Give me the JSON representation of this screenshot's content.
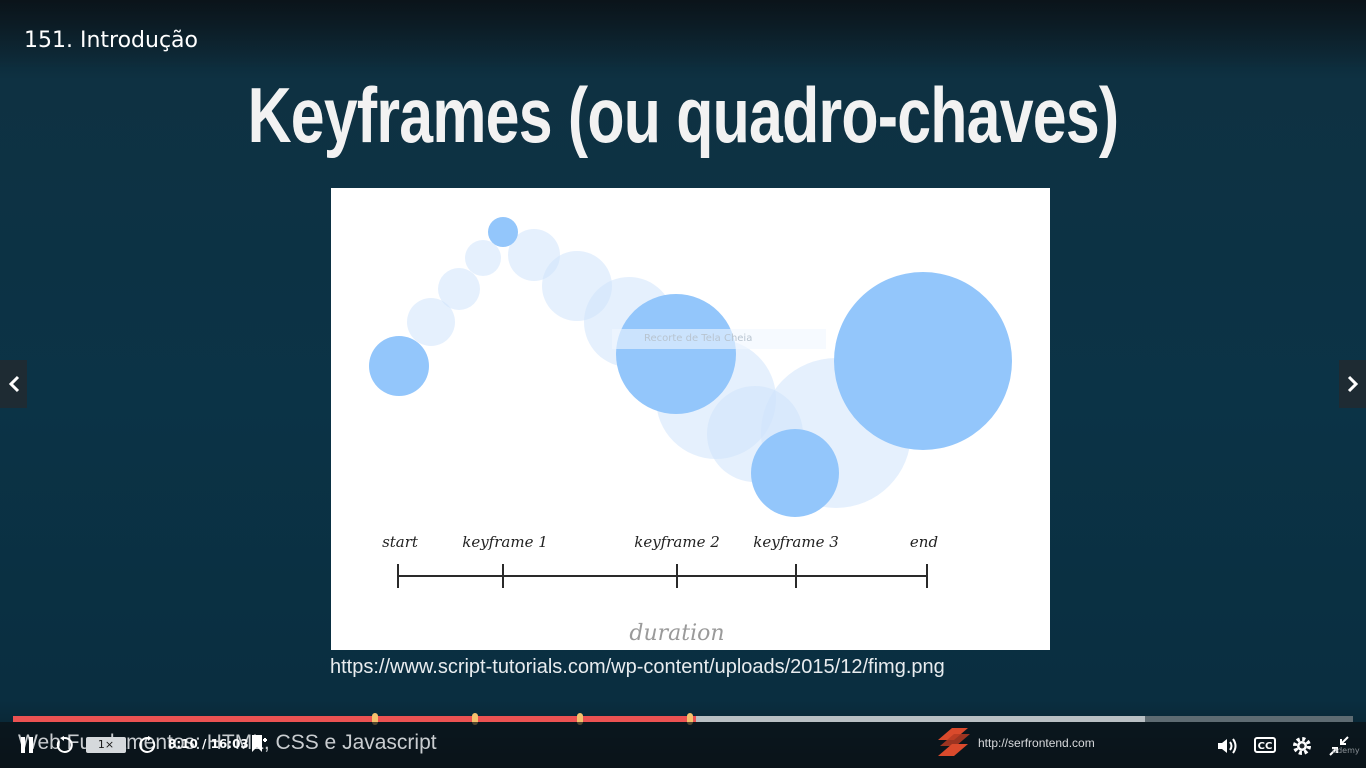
{
  "lecture": {
    "title": "151. Introdução"
  },
  "slide": {
    "heading": "Keyframes (ou quadro-chaves)",
    "source_url": "https://www.script-tutorials.com/wp-content/uploads/2015/12/fimg.png",
    "overlay_label": "Recorte de Tela Cheia",
    "figure_labels": {
      "start": "start",
      "keyframe1": "keyframe 1",
      "keyframe2": "keyframe 2",
      "keyframe3": "keyframe 3",
      "end": "end",
      "duration": "duration"
    }
  },
  "player": {
    "course_title": "Web Fundamentos: HTML, CSS e Javascript",
    "speed": "1×",
    "time": "8:10 / 16:03",
    "brand_url": "http://serfrontend.com",
    "cc_label": "CC",
    "watermark": "udemy",
    "progress": {
      "played": 0.51,
      "buffered": 0.845,
      "markers": [
        0.27,
        0.345,
        0.423,
        0.505
      ]
    },
    "colors": {
      "played": "#ec5252",
      "buffered": "#b9c0c4",
      "marker": "#f5c16c"
    },
    "icons": [
      "pause-icon",
      "rewind-icon",
      "forward-icon",
      "bookmark-icon",
      "volume-icon",
      "settings-icon",
      "exit-fullscreen-icon",
      "chevron-left-icon",
      "chevron-right-icon"
    ]
  }
}
